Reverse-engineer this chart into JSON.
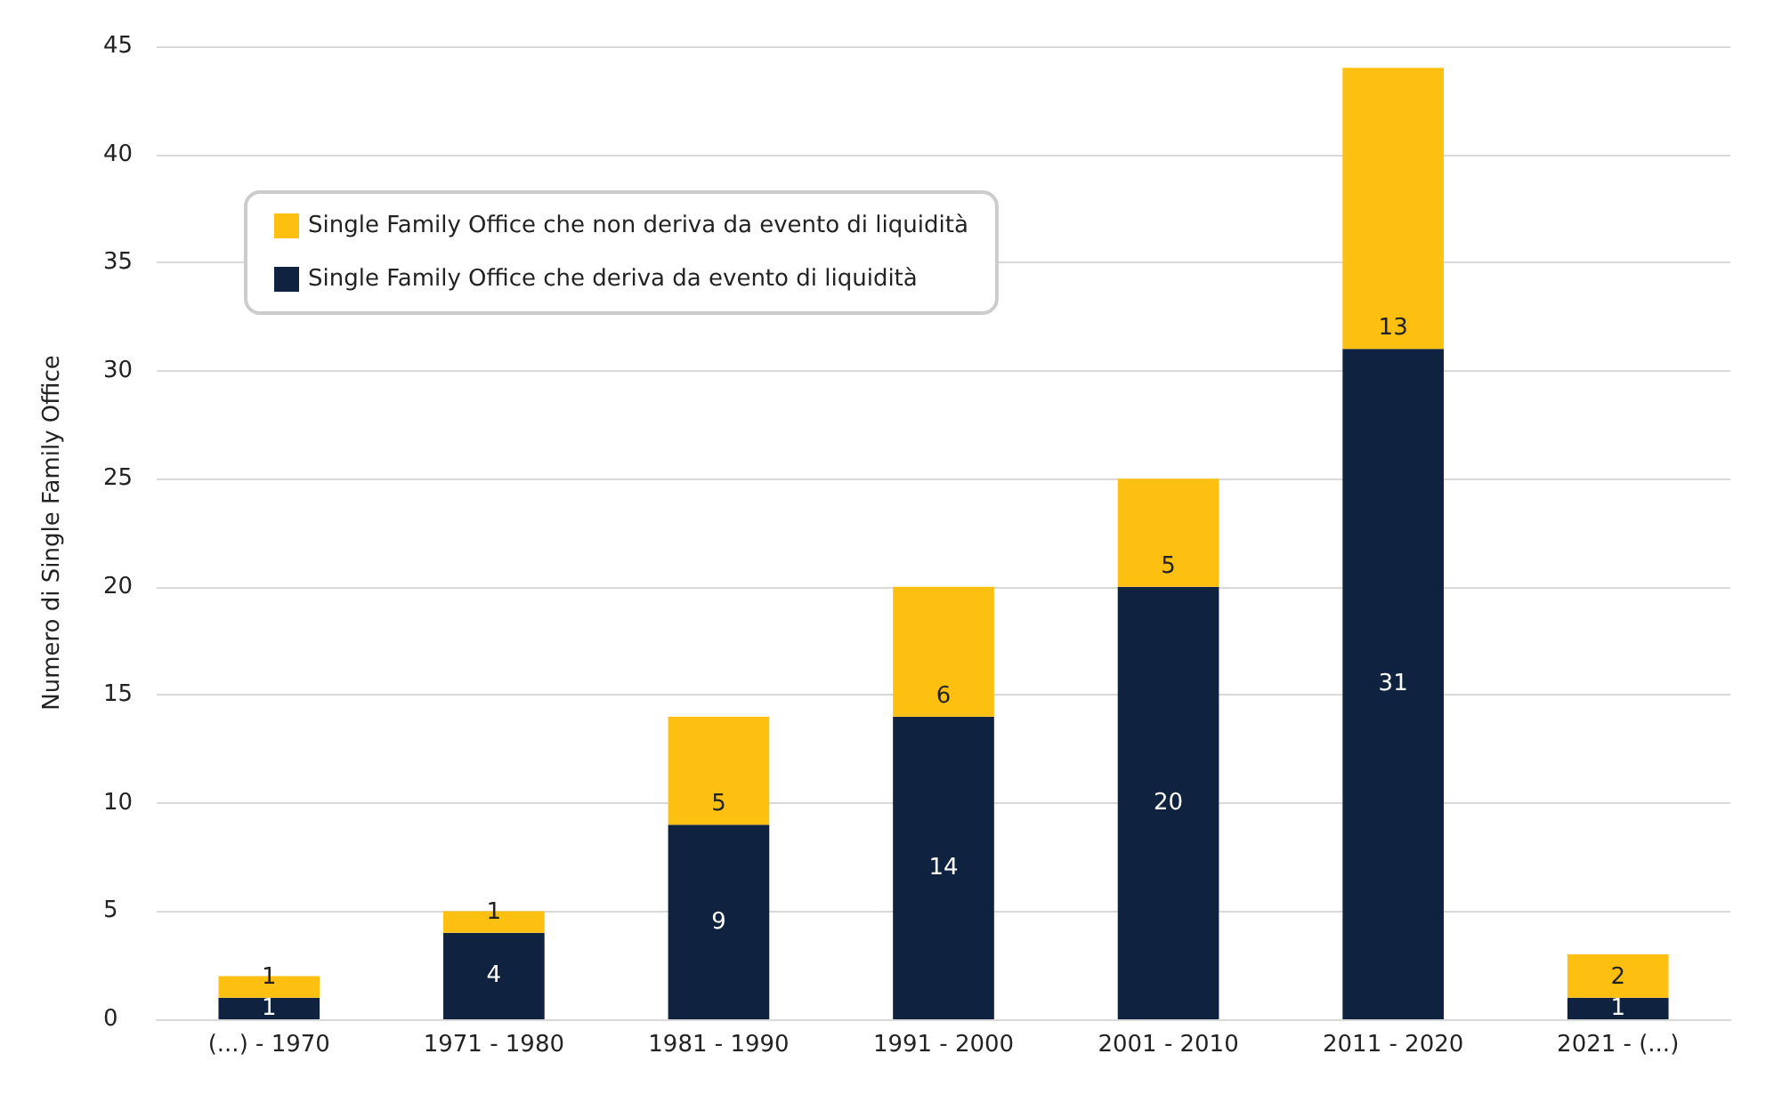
{
  "chart_data": {
    "type": "bar",
    "stacked": true,
    "ylabel": "Numero di Single Family Office",
    "categories": [
      "(...) - 1970",
      "1971 - 1980",
      "1981 - 1990",
      "1991 - 2000",
      "2001 - 2010",
      "2011 - 2020",
      "2021 - (...)"
    ],
    "series": [
      {
        "name": "Single Family Office che deriva da evento di liquidità",
        "color": "#0f2340",
        "values": [
          1,
          4,
          9,
          14,
          20,
          31,
          1
        ]
      },
      {
        "name": "Single Family Office che non deriva da evento di liquidità",
        "color": "#fdc010",
        "values": [
          1,
          1,
          5,
          6,
          5,
          13,
          2
        ]
      }
    ],
    "ylim": [
      0,
      45
    ],
    "yticks": [
      0,
      5,
      10,
      15,
      20,
      25,
      30,
      35,
      40,
      45
    ],
    "grid": "y",
    "legend": "top left",
    "data_labels": true
  }
}
